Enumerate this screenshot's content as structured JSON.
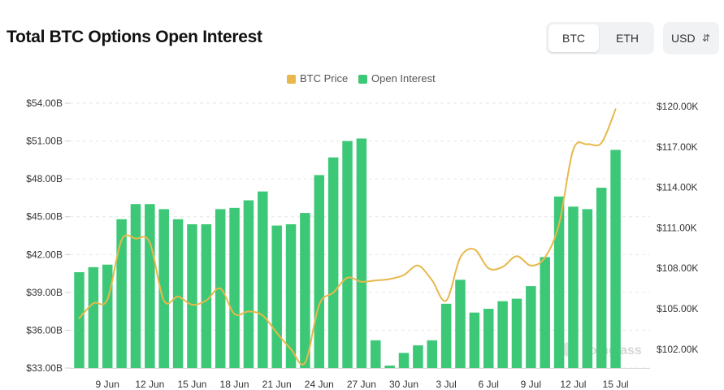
{
  "header": {
    "title": "Total BTC Options Open Interest",
    "toggle": {
      "btc_label": "BTC",
      "eth_label": "ETH",
      "active": "BTC"
    },
    "currency": {
      "label": "USD",
      "caret_icon": "up-down-caret-icon"
    }
  },
  "colors": {
    "bars": "#3dc878",
    "line": "#e8b84b",
    "grid": "#e6e6e6",
    "text": "#333333"
  },
  "chart_data": {
    "type": "bar+line",
    "title": "Total BTC Options Open Interest",
    "legend": [
      "BTC Price",
      "Open Interest"
    ],
    "legend_position": "top-center",
    "categories": [
      "7 Jun",
      "8 Jun",
      "9 Jun",
      "10 Jun",
      "11 Jun",
      "12 Jun",
      "13 Jun",
      "14 Jun",
      "15 Jun",
      "16 Jun",
      "17 Jun",
      "18 Jun",
      "19 Jun",
      "20 Jun",
      "21 Jun",
      "22 Jun",
      "23 Jun",
      "24 Jun",
      "25 Jun",
      "26 Jun",
      "27 Jun",
      "28 Jun",
      "29 Jun",
      "30 Jun",
      "1 Jul",
      "2 Jul",
      "3 Jul",
      "4 Jul",
      "5 Jul",
      "6 Jul",
      "7 Jul",
      "8 Jul",
      "9 Jul",
      "10 Jul",
      "11 Jul",
      "12 Jul",
      "13 Jul",
      "14 Jul",
      "15 Jul"
    ],
    "x_tick_labels": [
      {
        "index": 2,
        "label": "9 Jun"
      },
      {
        "index": 5,
        "label": "12 Jun"
      },
      {
        "index": 8,
        "label": "15 Jun"
      },
      {
        "index": 11,
        "label": "18 Jun"
      },
      {
        "index": 14,
        "label": "21 Jun"
      },
      {
        "index": 17,
        "label": "24 Jun"
      },
      {
        "index": 20,
        "label": "27 Jun"
      },
      {
        "index": 23,
        "label": "30 Jun"
      },
      {
        "index": 26,
        "label": "3 Jul"
      },
      {
        "index": 29,
        "label": "6 Jul"
      },
      {
        "index": 32,
        "label": "9 Jul"
      },
      {
        "index": 35,
        "label": "12 Jul"
      },
      {
        "index": 38,
        "label": "15 Jul"
      }
    ],
    "series": [
      {
        "name": "Open Interest",
        "type": "bar",
        "axis": "left",
        "unit": "B USD",
        "values": [
          40.6,
          41.0,
          41.2,
          44.8,
          46.0,
          46.0,
          45.6,
          44.8,
          44.4,
          44.4,
          45.6,
          45.7,
          46.3,
          47.0,
          44.3,
          44.4,
          45.3,
          48.3,
          49.7,
          51.0,
          51.2,
          35.2,
          33.2,
          34.2,
          34.8,
          35.2,
          38.1,
          40.0,
          37.4,
          37.7,
          38.3,
          38.5,
          39.5,
          41.8,
          46.6,
          45.8,
          45.6,
          47.3,
          50.3
        ]
      },
      {
        "name": "BTC Price",
        "type": "line",
        "axis": "right",
        "unit": "K USD",
        "values": [
          104.3,
          105.4,
          105.7,
          110.1,
          110.2,
          109.9,
          105.6,
          105.9,
          105.3,
          105.6,
          106.5,
          104.6,
          104.8,
          104.5,
          103.2,
          102.0,
          101.0,
          105.3,
          106.2,
          107.3,
          107.0,
          107.1,
          107.2,
          107.5,
          108.2,
          107.1,
          105.6,
          108.8,
          109.4,
          108.0,
          108.1,
          108.9,
          108.2,
          108.8,
          111.3,
          116.8,
          117.2,
          117.3,
          119.8
        ]
      }
    ],
    "y_left": {
      "ticks": [
        "$33.00B",
        "$36.00B",
        "$39.00B",
        "$42.00B",
        "$45.00B",
        "$48.00B",
        "$51.00B",
        "$54.00B"
      ],
      "min": 33,
      "max": 54
    },
    "y_right": {
      "ticks": [
        "$102.00K",
        "$105.00K",
        "$108.00K",
        "$111.00K",
        "$114.00K",
        "$117.00K",
        "$120.00K"
      ],
      "min": 100.6,
      "max": 120.0
    },
    "watermark": "coinglass"
  }
}
